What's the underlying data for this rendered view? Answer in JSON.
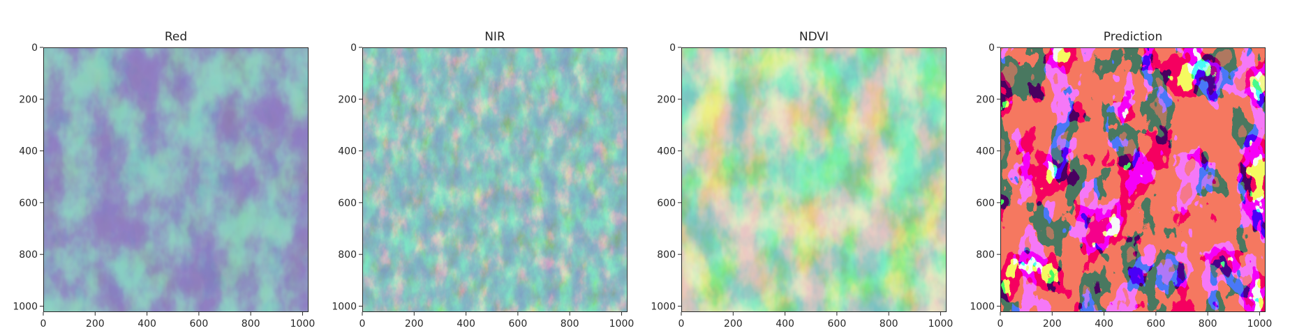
{
  "chart_data": [
    {
      "type": "heatmap",
      "title": "Red",
      "colormap": "viridis",
      "xlim": [
        0,
        1023
      ],
      "ylim": [
        1023,
        0
      ],
      "xticks": [
        0,
        200,
        400,
        600,
        800,
        1000
      ],
      "yticks": [
        0,
        200,
        400,
        600,
        800,
        1000
      ],
      "xticklabels": [
        "0",
        "200",
        "400",
        "600",
        "800",
        "1000"
      ],
      "yticklabels": [
        "0",
        "200",
        "400",
        "600",
        "800",
        "1000"
      ],
      "xlabel": "",
      "ylabel": "",
      "grid": false
    },
    {
      "type": "heatmap",
      "title": "NIR",
      "colormap": "viridis",
      "xlim": [
        0,
        1023
      ],
      "ylim": [
        1023,
        0
      ],
      "xticks": [
        0,
        200,
        400,
        600,
        800,
        1000
      ],
      "yticks": [
        0,
        200,
        400,
        600,
        800,
        1000
      ],
      "xticklabels": [
        "0",
        "200",
        "400",
        "600",
        "800",
        "1000"
      ],
      "yticklabels": [
        "0",
        "200",
        "400",
        "600",
        "800",
        "1000"
      ],
      "xlabel": "",
      "ylabel": "",
      "grid": false
    },
    {
      "type": "heatmap",
      "title": "NDVI",
      "colormap": "viridis",
      "xlim": [
        0,
        1023
      ],
      "ylim": [
        1023,
        0
      ],
      "xticks": [
        0,
        200,
        400,
        600,
        800,
        1000
      ],
      "yticks": [
        0,
        200,
        400,
        600,
        800,
        1000
      ],
      "xticklabels": [
        "0",
        "200",
        "400",
        "600",
        "800",
        "1000"
      ],
      "yticklabels": [
        "0",
        "200",
        "400",
        "600",
        "800",
        "1000"
      ],
      "xlabel": "",
      "ylabel": "",
      "grid": false
    },
    {
      "type": "heatmap",
      "title": "Prediction",
      "colormap": "categorical",
      "class_colors": [
        "#e8301f",
        "#6df542",
        "#1200ee"
      ],
      "xlim": [
        0,
        1023
      ],
      "ylim": [
        1023,
        0
      ],
      "xticks": [
        0,
        200,
        400,
        600,
        800,
        1000
      ],
      "yticks": [
        0,
        200,
        400,
        600,
        800,
        1000
      ],
      "xticklabels": [
        "0",
        "200",
        "400",
        "600",
        "800",
        "1000"
      ],
      "yticklabels": [
        "0",
        "200",
        "400",
        "600",
        "800",
        "1000"
      ],
      "xlabel": "",
      "ylabel": "",
      "grid": false
    }
  ]
}
